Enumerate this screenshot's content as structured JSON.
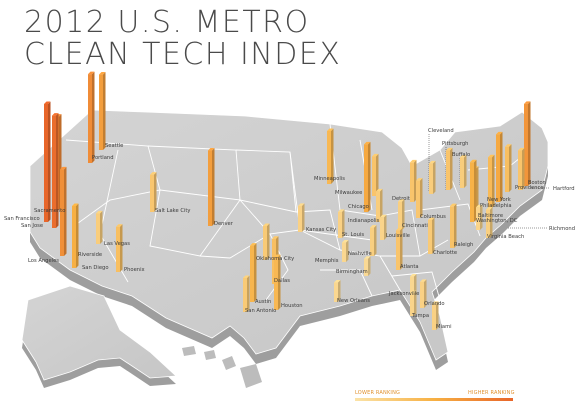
{
  "title": {
    "line1": "2012 U.S. METRO",
    "line2": "CLEAN TECH INDEX"
  },
  "legend": {
    "low": "LOWER RANKING",
    "high": "HIGHER RANKING",
    "colors": [
      "#fbe3a8",
      "#f7b043",
      "#e8662a"
    ]
  },
  "cities": [
    {
      "name": "Seattle",
      "rank": 0.62
    },
    {
      "name": "Portland",
      "rank": 0.74
    },
    {
      "name": "Sacramento",
      "rank": 0.78
    },
    {
      "name": "San Francisco",
      "rank": 1.0
    },
    {
      "name": "San Jose",
      "rank": 0.95
    },
    {
      "name": "Los Angeles",
      "rank": 0.72
    },
    {
      "name": "Riverside",
      "rank": 0.3
    },
    {
      "name": "San Diego",
      "rank": 0.5
    },
    {
      "name": "Las Vegas",
      "rank": 0.22
    },
    {
      "name": "Phoenix",
      "rank": 0.35
    },
    {
      "name": "Salt Lake City",
      "rank": 0.28
    },
    {
      "name": "Denver",
      "rank": 0.62
    },
    {
      "name": "Minneapolis",
      "rank": 0.42
    },
    {
      "name": "Milwaukee",
      "rank": 0.3
    },
    {
      "name": "Chicago",
      "rank": 0.55
    },
    {
      "name": "Kansas City",
      "rank": 0.18
    },
    {
      "name": "Oklahoma City",
      "rank": 0.25
    },
    {
      "name": "Dallas",
      "rank": 0.35
    },
    {
      "name": "Austin",
      "rank": 0.45
    },
    {
      "name": "San Antonio",
      "rank": 0.25
    },
    {
      "name": "Houston",
      "rank": 0.42
    },
    {
      "name": "Memphis",
      "rank": 0.12
    },
    {
      "name": "Birmingham",
      "rank": 0.1
    },
    {
      "name": "New Orleans",
      "rank": 0.12
    },
    {
      "name": "St. Louis",
      "rank": 0.18
    },
    {
      "name": "Indianapolis",
      "rank": 0.22
    },
    {
      "name": "Louisville",
      "rank": 0.15
    },
    {
      "name": "Nashville",
      "rank": 0.2
    },
    {
      "name": "Detroit",
      "rank": 0.3
    },
    {
      "name": "Cleveland",
      "rank": 0.22
    },
    {
      "name": "Columbus",
      "rank": 0.28
    },
    {
      "name": "Cincinnati",
      "rank": 0.2
    },
    {
      "name": "Pittsburgh",
      "rank": 0.3
    },
    {
      "name": "Buffalo",
      "rank": 0.22
    },
    {
      "name": "Atlanta",
      "rank": 0.3
    },
    {
      "name": "Charlotte",
      "rank": 0.25
    },
    {
      "name": "Raleigh",
      "rank": 0.32
    },
    {
      "name": "Jacksonville",
      "rank": 0.12
    },
    {
      "name": "Orlando",
      "rank": 0.18
    },
    {
      "name": "Tampa",
      "rank": 0.15
    },
    {
      "name": "Miami",
      "rank": 0.18
    },
    {
      "name": "Boston",
      "rank": 0.68
    },
    {
      "name": "Providence",
      "rank": 0.3
    },
    {
      "name": "Hartford",
      "rank": 0.35
    },
    {
      "name": "New York",
      "rank": 0.55
    },
    {
      "name": "Philadelphia",
      "rank": 0.4
    },
    {
      "name": "Baltimore",
      "rank": 0.35
    },
    {
      "name": "Washington, DC",
      "rank": 0.48
    },
    {
      "name": "Virginia Beach",
      "rank": 0.2
    },
    {
      "name": "Richmond",
      "rank": 0.15
    }
  ]
}
